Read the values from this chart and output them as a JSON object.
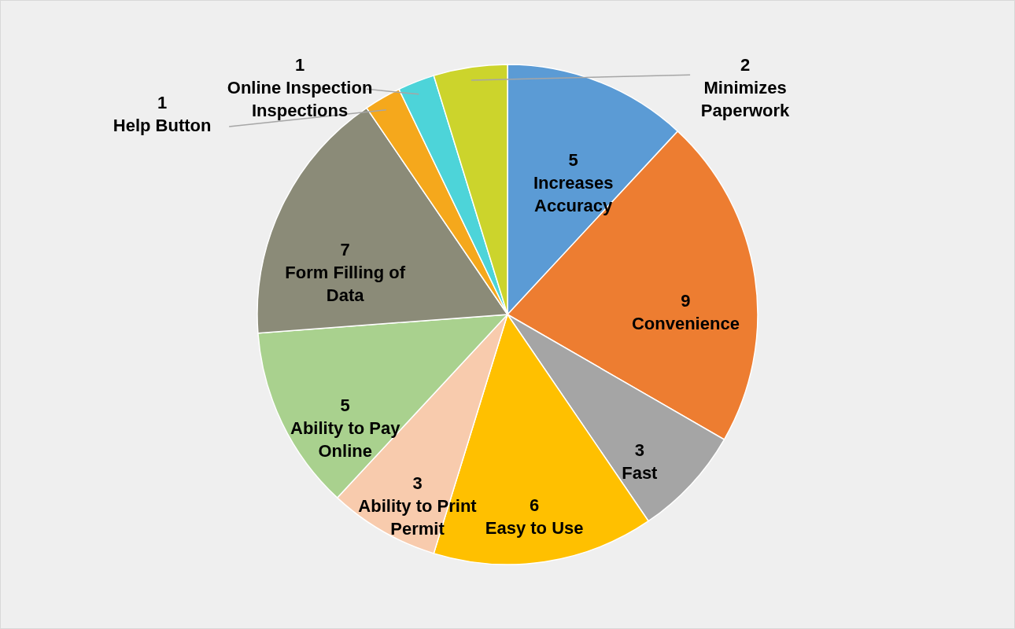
{
  "chart_data": {
    "type": "pie",
    "categories": [
      "Increases Accuracy",
      "Convenience",
      "Fast",
      "Easy to Use",
      "Ability to Print Permit",
      "Ability to Pay Online",
      "Form Filling of Data",
      "Help Button",
      "Online Inspection Inspections",
      "Minimizes Paperwork"
    ],
    "values": [
      5,
      9,
      3,
      6,
      3,
      5,
      7,
      1,
      1,
      2
    ],
    "colors": [
      "#5b9bd5",
      "#ed7d31",
      "#a5a5a5",
      "#ffc000",
      "#f8cbad",
      "#a9d18e",
      "#8b8b78",
      "#f5a81c",
      "#4dd4d9",
      "#ccd42c"
    ],
    "data_labels": true
  }
}
